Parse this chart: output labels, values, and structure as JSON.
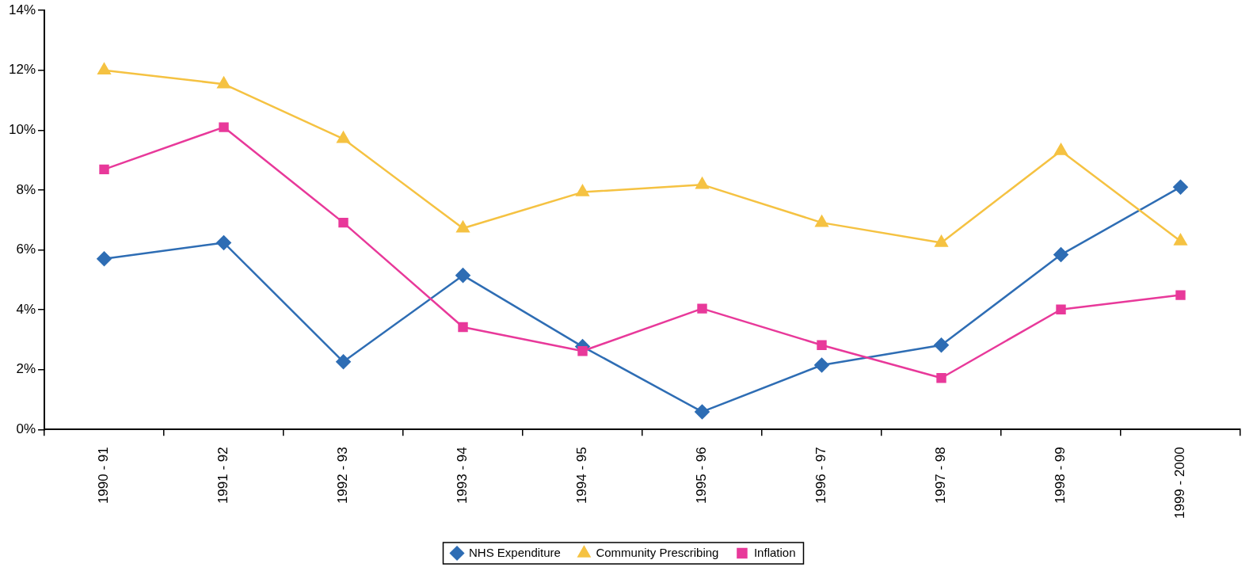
{
  "chart_data": {
    "type": "line",
    "categories": [
      "1990 - 91",
      "1991 - 92",
      "1992 - 93",
      "1993 - 94",
      "1994 - 95",
      "1995 - 96",
      "1996 - 97",
      "1997 - 98",
      "1998 - 99",
      "1999 - 2000"
    ],
    "series": [
      {
        "name": "NHS Expenditure",
        "color": "#2e6db4",
        "marker": "diamond",
        "values": [
          5.7,
          6.24,
          2.26,
          5.15,
          2.77,
          0.59,
          2.15,
          2.82,
          5.84,
          8.1
        ]
      },
      {
        "name": "Community Prescribing",
        "color": "#f5c242",
        "marker": "triangle",
        "values": [
          12.0,
          11.54,
          9.71,
          6.72,
          7.93,
          8.18,
          6.91,
          6.24,
          9.31,
          6.29
        ]
      },
      {
        "name": "Inflation",
        "color": "#e8399a",
        "marker": "square",
        "values": [
          8.69,
          10.1,
          6.91,
          3.42,
          2.62,
          4.04,
          2.82,
          1.72,
          4.01,
          4.49
        ]
      }
    ],
    "ylim": [
      0,
      14
    ],
    "yticks": [
      {
        "value": 0,
        "label": "0%"
      },
      {
        "value": 2,
        "label": "2%"
      },
      {
        "value": 4,
        "label": "4%"
      },
      {
        "value": 6,
        "label": "6%"
      },
      {
        "value": 8,
        "label": "8%"
      },
      {
        "value": 10,
        "label": "10%"
      },
      {
        "value": 12,
        "label": "12%"
      },
      {
        "value": 14,
        "label": "14%"
      }
    ],
    "grid": false,
    "legend": "bottom",
    "line_style": "solid"
  }
}
